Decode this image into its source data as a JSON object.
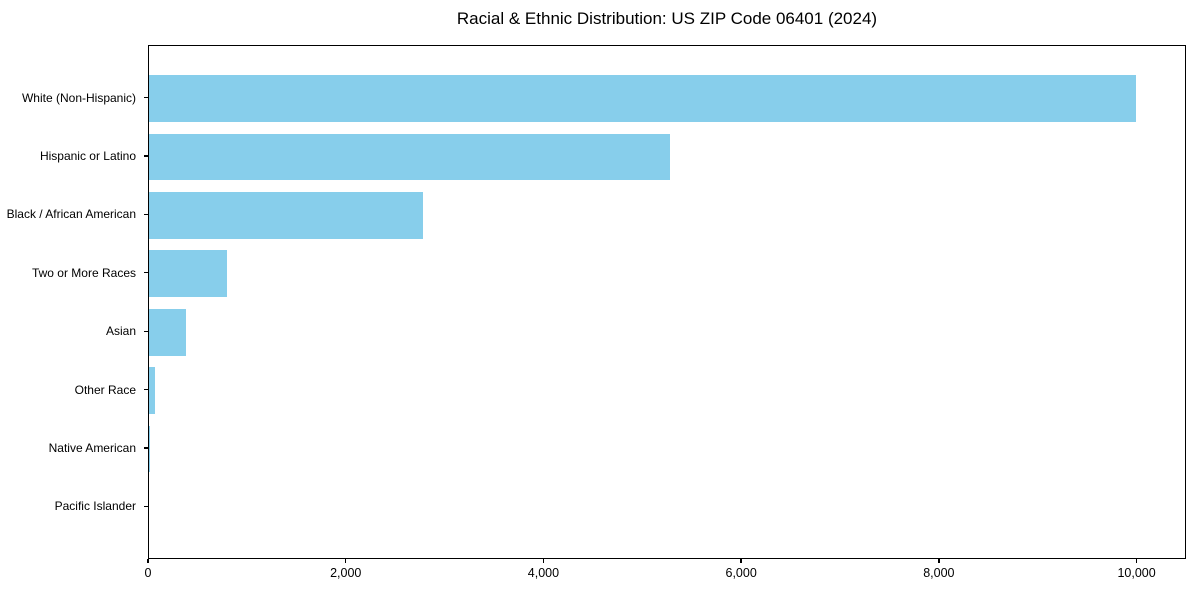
{
  "chart_data": {
    "type": "bar",
    "orientation": "horizontal",
    "title": "Racial & Ethnic Distribution: US ZIP Code 06401 (2024)",
    "xlabel": "",
    "ylabel": "",
    "categories": [
      "White (Non-Hispanic)",
      "Hispanic or Latino",
      "Black / African American",
      "Two or More Races",
      "Asian",
      "Other Race",
      "Native American",
      "Pacific Islander"
    ],
    "values": [
      10000,
      5280,
      2780,
      795,
      380,
      65,
      10,
      0
    ],
    "bar_color": "#87CEEB",
    "background_color": "#ffffff",
    "axis_color": "#000000",
    "xlim": [
      0,
      10500
    ],
    "xticks": [
      0,
      2000,
      4000,
      6000,
      8000,
      10000
    ],
    "xtick_labels": [
      "0",
      "2,000",
      "4,000",
      "6,000",
      "8,000",
      "10,000"
    ],
    "grid": false,
    "legend": null
  }
}
